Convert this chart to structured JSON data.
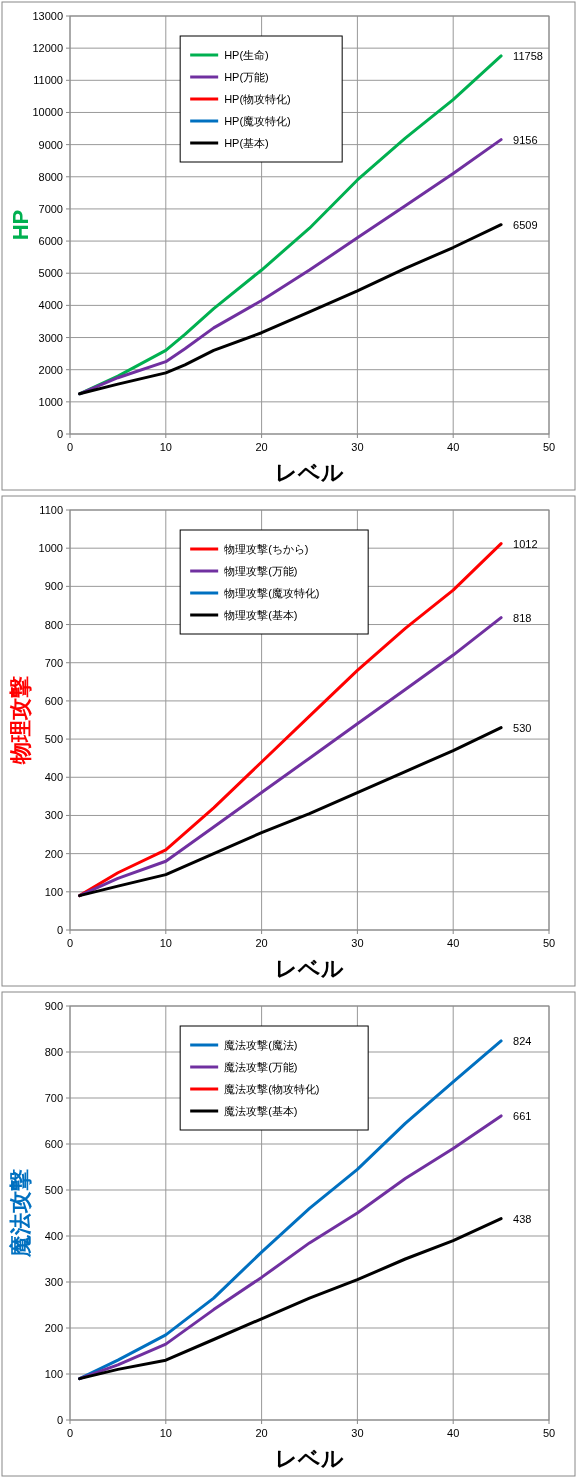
{
  "chart_data": [
    {
      "type": "line",
      "xlabel": "レベル",
      "ylabel": "HP",
      "xlim": [
        0,
        50
      ],
      "xticks": [
        0,
        10,
        20,
        30,
        40,
        50
      ],
      "ylim": [
        0,
        13000
      ],
      "yticks": [
        0,
        1000,
        2000,
        3000,
        4000,
        5000,
        6000,
        7000,
        8000,
        9000,
        10000,
        11000,
        12000,
        13000
      ],
      "grid": true,
      "legend": "top left",
      "x": [
        1,
        5,
        10,
        12,
        15,
        20,
        25,
        30,
        35,
        40,
        45
      ],
      "series": [
        {
          "name": "HP(生命)",
          "color": "#00b050",
          "values": [
            1250,
            1800,
            2600,
            3100,
            3900,
            5100,
            6400,
            7900,
            9200,
            10400,
            11758
          ],
          "value_labels": [
            null,
            null,
            null,
            null,
            null,
            null,
            null,
            null,
            null,
            null,
            "11758"
          ]
        },
        {
          "name": "HP(万能)",
          "color": "#7030a0",
          "values": [
            1250,
            1750,
            2250,
            2650,
            3300,
            4150,
            5100,
            6100,
            7100,
            8100,
            9156
          ],
          "value_labels": [
            null,
            null,
            null,
            null,
            null,
            null,
            null,
            null,
            null,
            null,
            "9156"
          ]
        },
        {
          "name": "HP(物攻特化)",
          "color": "#ff0000",
          "values": [
            null,
            null,
            null,
            null,
            null,
            null,
            null,
            null,
            null,
            null,
            null
          ]
        },
        {
          "name": "HP(魔攻特化)",
          "color": "#0070c0",
          "values": [
            null,
            null,
            null,
            null,
            null,
            null,
            null,
            null,
            null,
            null,
            null
          ]
        },
        {
          "name": "HP(基本)",
          "color": "#000000",
          "values": [
            1250,
            1550,
            1900,
            2150,
            2600,
            3150,
            3800,
            4450,
            5150,
            5800,
            6509
          ],
          "value_labels": [
            null,
            null,
            null,
            null,
            null,
            null,
            null,
            null,
            null,
            null,
            "6509"
          ]
        }
      ]
    },
    {
      "type": "line",
      "xlabel": "レベル",
      "ylabel": "物理攻撃",
      "xlim": [
        0,
        50
      ],
      "xticks": [
        0,
        10,
        20,
        30,
        40,
        50
      ],
      "ylim": [
        0,
        1100
      ],
      "yticks": [
        0,
        100,
        200,
        300,
        400,
        500,
        600,
        700,
        800,
        900,
        1000,
        1100
      ],
      "grid": true,
      "legend": "top left",
      "x": [
        1,
        5,
        10,
        15,
        20,
        25,
        30,
        35,
        40,
        45
      ],
      "series": [
        {
          "name": "物理攻撃(ちから)",
          "color": "#ff0000",
          "values": [
            90,
            150,
            210,
            320,
            440,
            560,
            680,
            790,
            890,
            1012
          ],
          "value_labels": [
            null,
            null,
            null,
            null,
            null,
            null,
            null,
            null,
            null,
            "1012"
          ]
        },
        {
          "name": "物理攻撃(万能)",
          "color": "#7030a0",
          "values": [
            90,
            135,
            180,
            270,
            360,
            450,
            540,
            630,
            720,
            818
          ],
          "value_labels": [
            null,
            null,
            null,
            null,
            null,
            null,
            null,
            null,
            null,
            "818"
          ]
        },
        {
          "name": "物理攻撃(魔攻特化)",
          "color": "#0070c0",
          "values": [
            null,
            null,
            null,
            null,
            null,
            null,
            null,
            null,
            null,
            null
          ]
        },
        {
          "name": "物理攻撃(基本)",
          "color": "#000000",
          "values": [
            90,
            115,
            145,
            200,
            255,
            305,
            360,
            415,
            470,
            530
          ],
          "value_labels": [
            null,
            null,
            null,
            null,
            null,
            null,
            null,
            null,
            null,
            "530"
          ]
        }
      ]
    },
    {
      "type": "line",
      "xlabel": "レベル",
      "ylabel": "魔法攻撃",
      "xlim": [
        0,
        50
      ],
      "xticks": [
        0,
        10,
        20,
        30,
        40,
        50
      ],
      "ylim": [
        0,
        900
      ],
      "yticks": [
        0,
        100,
        200,
        300,
        400,
        500,
        600,
        700,
        800,
        900
      ],
      "grid": true,
      "legend": "top left",
      "x": [
        1,
        5,
        10,
        15,
        20,
        25,
        30,
        35,
        40,
        45
      ],
      "series": [
        {
          "name": "魔法攻撃(魔法)",
          "color": "#0070c0",
          "values": [
            90,
            130,
            185,
            265,
            365,
            460,
            545,
            645,
            735,
            824
          ],
          "value_labels": [
            null,
            null,
            null,
            null,
            null,
            null,
            null,
            null,
            null,
            "824"
          ]
        },
        {
          "name": "魔法攻撃(万能)",
          "color": "#7030a0",
          "values": [
            90,
            120,
            165,
            240,
            310,
            385,
            450,
            525,
            590,
            661
          ],
          "value_labels": [
            null,
            null,
            null,
            null,
            null,
            null,
            null,
            null,
            null,
            "661"
          ]
        },
        {
          "name": "魔法攻撃(物攻特化)",
          "color": "#ff0000",
          "values": [
            null,
            null,
            null,
            null,
            null,
            null,
            null,
            null,
            null,
            null
          ]
        },
        {
          "name": "魔法攻撃(基本)",
          "color": "#000000",
          "values": [
            90,
            110,
            130,
            175,
            220,
            265,
            305,
            350,
            390,
            438
          ],
          "value_labels": [
            null,
            null,
            null,
            null,
            null,
            null,
            null,
            null,
            null,
            "438"
          ]
        }
      ]
    }
  ]
}
